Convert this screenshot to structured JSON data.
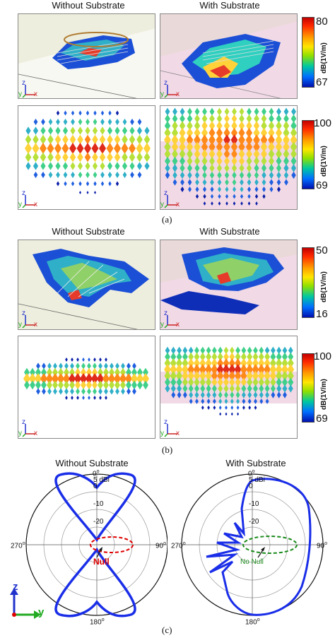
{
  "section_a": {
    "title_left": "Without Substrate",
    "title_right": "With Substrate",
    "caption": "(a)",
    "colorbar_top": {
      "max": "80",
      "min": "67",
      "unit": "dB(1V/m)"
    },
    "colorbar_bottom": {
      "max": "100",
      "min": "69",
      "unit": "dB(1V/m)"
    }
  },
  "section_b": {
    "title_left": "Without Substrate",
    "title_right": "With Substrate",
    "caption": "(b)",
    "colorbar_top": {
      "max": "50",
      "min": "16",
      "unit": "dB(1V/m)"
    },
    "colorbar_bottom": {
      "max": "100",
      "min": "69",
      "unit": "dB(1V/m)"
    }
  },
  "axes_labels": {
    "z": "z",
    "y": "y",
    "x": "x"
  },
  "section_c": {
    "title_left": "Without Substrate",
    "title_right": "With Substrate",
    "caption": "(c)",
    "polar_labels": {
      "top": "0",
      "bottom": "180",
      "left": "270",
      "right": "90",
      "deg": "o",
      "ring_outer": "5 dBi",
      "ring_0": "0",
      "ring_m10": "-10",
      "ring_m20": "-20"
    },
    "null_label": "Null",
    "no_null_label": "No Null",
    "axes": {
      "z": "z",
      "y": "y"
    }
  },
  "colors": {
    "pattern_line": "#1a2ee8",
    "null_red": "#e00000",
    "no_null_green": "#1a8a1a",
    "substrate_pink": "#f1d9e6",
    "plane_beige": "#eeeede"
  }
}
